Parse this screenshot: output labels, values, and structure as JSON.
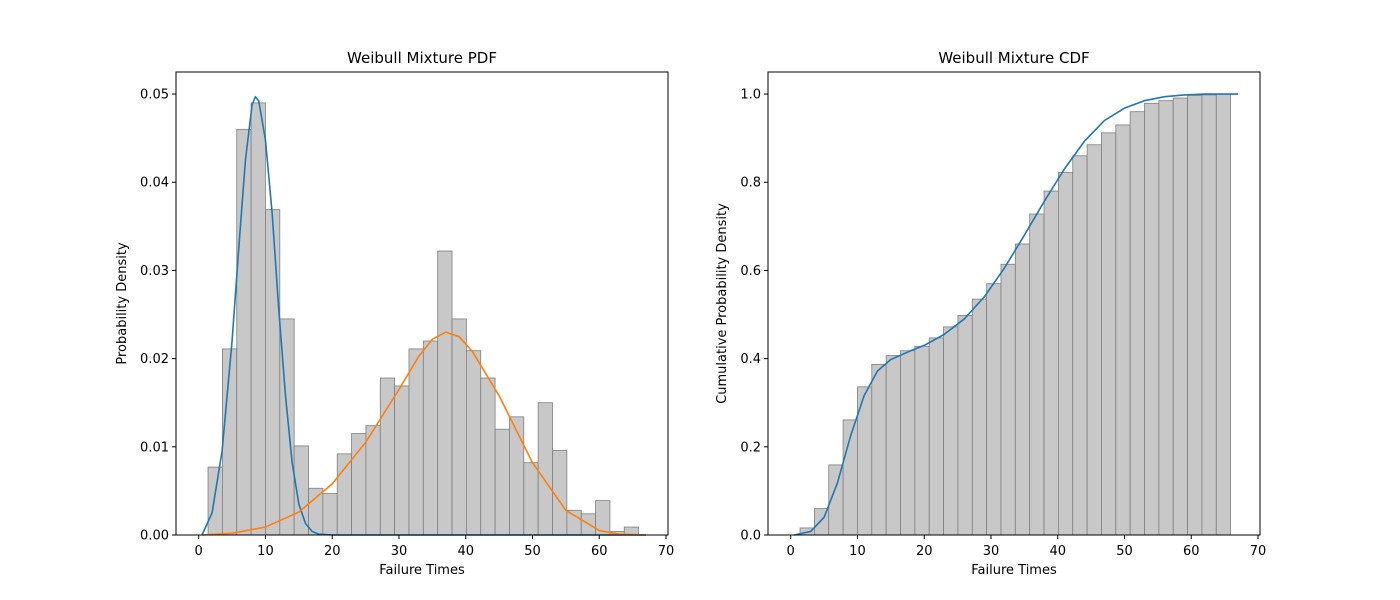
{
  "chart_data": [
    {
      "type": "bar",
      "title": "Weibull Mixture PDF",
      "xlabel": "Failure Times",
      "ylabel": "Probability Density",
      "xlim": [
        -3.4,
        70.3
      ],
      "ylim": [
        0,
        0.0525
      ],
      "xticks": [
        0,
        10,
        20,
        30,
        40,
        50,
        60,
        70
      ],
      "yticks": [
        0.0,
        0.01,
        0.02,
        0.03,
        0.04,
        0.05
      ],
      "ytick_labels": [
        "0.00",
        "0.01",
        "0.02",
        "0.03",
        "0.04",
        "0.05"
      ],
      "grid": false,
      "histogram": {
        "bin_start": 1.4,
        "bin_width": 2.15,
        "values": [
          0.0077,
          0.0211,
          0.046,
          0.049,
          0.0369,
          0.0245,
          0.0101,
          0.0053,
          0.0047,
          0.0092,
          0.0115,
          0.0124,
          0.0178,
          0.0169,
          0.0211,
          0.022,
          0.0322,
          0.0245,
          0.0209,
          0.0178,
          0.012,
          0.0134,
          0.0082,
          0.015,
          0.0096,
          0.0028,
          0.0024,
          0.0039,
          0.0004,
          0.0009
        ],
        "fill": "#c8c8c8",
        "edge": "#7f7f7f"
      },
      "series": [
        {
          "color": "#1f77b4",
          "x": [
            0.5,
            2,
            3.5,
            5,
            6,
            7,
            8,
            8.5,
            9,
            10,
            11,
            12,
            13,
            14,
            15,
            16,
            17,
            18,
            20,
            25,
            30,
            40,
            50,
            60,
            67
          ],
          "y": [
            0.0,
            0.0025,
            0.0095,
            0.022,
            0.0325,
            0.0425,
            0.0488,
            0.0497,
            0.0492,
            0.0448,
            0.0365,
            0.0255,
            0.0158,
            0.0082,
            0.0035,
            0.0013,
            0.0004,
            0.0001,
            0.0,
            0.0,
            0.0,
            0.0,
            0.0,
            0.0,
            0.0
          ]
        },
        {
          "color": "#ff7f0e",
          "x": [
            0.5,
            5,
            10,
            15,
            20,
            25,
            30,
            33,
            35,
            37,
            39,
            41,
            45,
            50,
            55,
            60,
            63,
            67
          ],
          "y": [
            0.0,
            0.0002,
            0.0009,
            0.0026,
            0.0058,
            0.0105,
            0.0165,
            0.0203,
            0.0222,
            0.023,
            0.0225,
            0.0208,
            0.0158,
            0.0082,
            0.0028,
            0.0005,
            0.0001,
            0.0
          ]
        }
      ]
    },
    {
      "type": "bar",
      "title": "Weibull Mixture CDF",
      "xlabel": "Failure Times",
      "ylabel": "Cumulative Probability Density",
      "xlim": [
        -3.4,
        70.3
      ],
      "ylim": [
        0,
        1.05
      ],
      "xticks": [
        0,
        10,
        20,
        30,
        40,
        50,
        60,
        70
      ],
      "yticks": [
        0.0,
        0.2,
        0.4,
        0.6,
        0.8,
        1.0
      ],
      "ytick_labels": [
        "0.0",
        "0.2",
        "0.4",
        "0.6",
        "0.8",
        "1.0"
      ],
      "grid": false,
      "histogram": {
        "bin_start": 1.4,
        "bin_width": 2.15,
        "values": [
          0.016,
          0.06,
          0.159,
          0.261,
          0.336,
          0.387,
          0.407,
          0.418,
          0.428,
          0.447,
          0.472,
          0.498,
          0.535,
          0.57,
          0.614,
          0.66,
          0.728,
          0.78,
          0.822,
          0.86,
          0.885,
          0.912,
          0.93,
          0.96,
          0.979,
          0.985,
          0.991,
          0.997,
          0.998,
          1.0
        ],
        "fill": "#c8c8c8",
        "edge": "#7f7f7f"
      },
      "series": [
        {
          "color": "#1f77b4",
          "x": [
            0.5,
            3,
            5,
            7,
            9,
            11,
            13,
            15,
            18,
            20,
            23,
            26,
            29,
            32,
            35,
            38,
            41,
            44,
            47,
            50,
            53,
            56,
            59,
            62,
            67
          ],
          "y": [
            0.0,
            0.008,
            0.04,
            0.118,
            0.226,
            0.316,
            0.372,
            0.398,
            0.418,
            0.43,
            0.455,
            0.49,
            0.54,
            0.605,
            0.68,
            0.757,
            0.83,
            0.893,
            0.94,
            0.968,
            0.985,
            0.994,
            0.998,
            1.0,
            1.0
          ]
        }
      ]
    }
  ]
}
